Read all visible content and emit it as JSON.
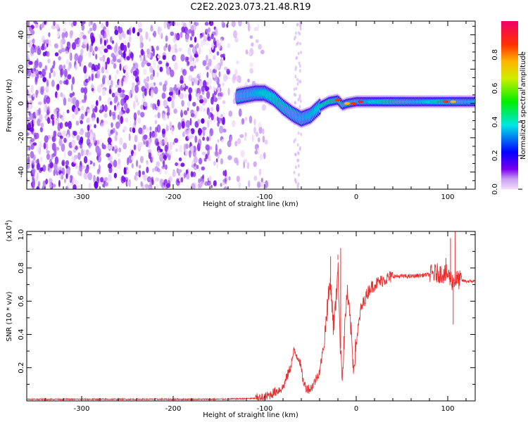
{
  "title": "C2E2.2023.073.21.48.R19",
  "chart_data": [
    {
      "type": "heatmap",
      "name": "spectrogram",
      "xlabel": "Height of straight line (km)",
      "ylabel": "Frequency (Hz)",
      "xlim": [
        -360,
        130
      ],
      "ylim": [
        -50,
        48
      ],
      "xticks": [
        -300,
        -200,
        -100,
        0,
        100
      ],
      "yticks": [
        -40,
        -20,
        0,
        20,
        40
      ],
      "noise_region_x": [
        -360,
        -97
      ],
      "ridge": {
        "x": [
          -130,
          -120,
          -110,
          -100,
          -90,
          -80,
          -70,
          -60,
          -50,
          -40,
          -30,
          -20,
          -15,
          -10,
          0,
          20,
          50,
          80,
          100,
          130
        ],
        "y": [
          4,
          5,
          6,
          6,
          3,
          -2,
          -6,
          -9,
          -7,
          -2,
          1,
          2,
          -1,
          0,
          1,
          1,
          1,
          1,
          1,
          1
        ]
      },
      "colorbar": {
        "label": "Normalized spectral amplitude",
        "range": [
          0,
          1
        ],
        "ticks": [
          0.0,
          0.2,
          0.4,
          0.6,
          0.8
        ]
      }
    },
    {
      "type": "line",
      "name": "snr",
      "xlabel": "Height of straight line (km)",
      "ylabel": "SNR (10 * v/v)",
      "scale_label": "(x10",
      "scale_exp": "4",
      "scale_close": ")",
      "xlim": [
        -360,
        130
      ],
      "ylim": [
        0,
        1.02
      ],
      "xticks": [
        -300,
        -200,
        -100,
        0,
        100
      ],
      "yticks": [
        0.2,
        0.4,
        0.6,
        0.8,
        1.0
      ],
      "color": "#e83030",
      "series": {
        "x": [
          -360,
          -250,
          -150,
          -110,
          -100,
          -90,
          -80,
          -72,
          -68,
          -62,
          -58,
          -55,
          -50,
          -45,
          -40,
          -35,
          -32,
          -28,
          -25,
          -22,
          -20,
          -18,
          -15,
          -12,
          -10,
          -6,
          -3,
          0,
          5,
          10,
          15,
          20,
          30,
          40,
          60,
          80,
          90,
          100,
          105,
          110,
          120,
          130
        ],
        "y": [
          0.01,
          0.01,
          0.01,
          0.015,
          0.02,
          0.05,
          0.08,
          0.2,
          0.3,
          0.25,
          0.12,
          0.08,
          0.07,
          0.12,
          0.18,
          0.35,
          0.55,
          0.72,
          0.45,
          0.6,
          0.85,
          0.4,
          0.15,
          0.5,
          0.65,
          0.45,
          0.2,
          0.35,
          0.55,
          0.62,
          0.68,
          0.7,
          0.73,
          0.75,
          0.75,
          0.76,
          0.77,
          0.76,
          0.72,
          0.73,
          0.72,
          0.72
        ]
      },
      "spikes": [
        {
          "x": -20,
          "y": 0.88
        },
        {
          "x": -17,
          "y": 0.92
        },
        {
          "x": -28,
          "y": 0.87
        },
        {
          "x": 98,
          "y": 0.86
        },
        {
          "x": 103,
          "y": 0.98
        },
        {
          "x": 108,
          "y": 1.02
        },
        {
          "x": 106,
          "y": 0.46
        }
      ]
    }
  ]
}
